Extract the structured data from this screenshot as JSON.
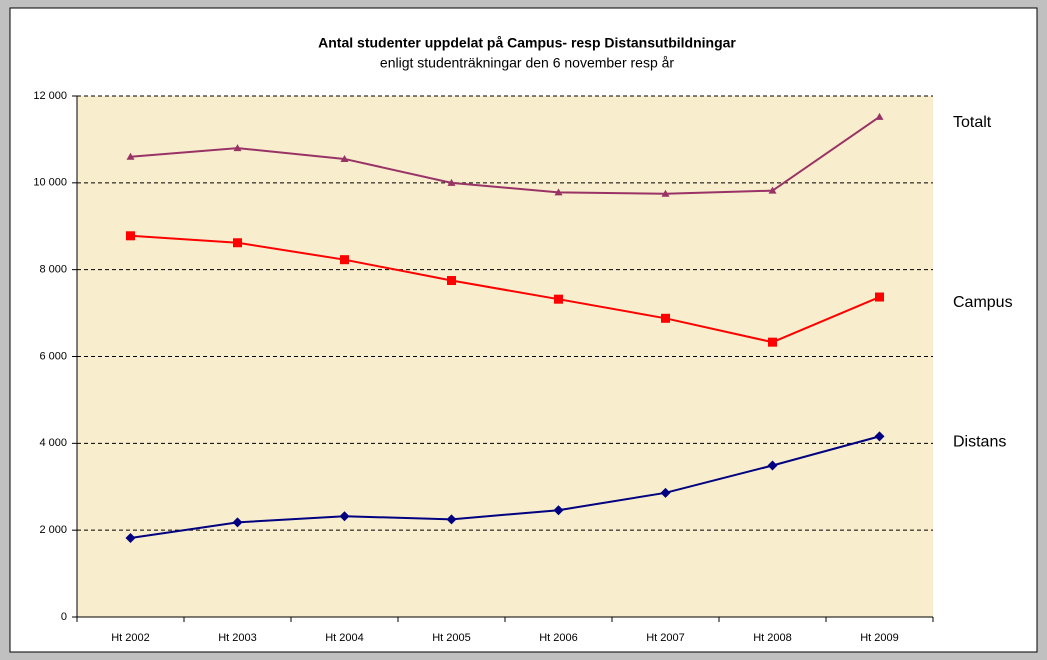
{
  "chart_data": {
    "type": "line",
    "title": "Antal studenter uppdelat på Campus- resp Distansutbildningar",
    "subtitle": "enligt studenträkningar den 6 november resp år",
    "categories": [
      "Ht 2002",
      "Ht 2003",
      "Ht 2004",
      "Ht 2005",
      "Ht 2006",
      "Ht 2007",
      "Ht 2008",
      "Ht 2009"
    ],
    "series": [
      {
        "name": "Totalt",
        "color": "#993366",
        "marker": "triangle",
        "values": [
          10600,
          10800,
          10550,
          10000,
          9780,
          9750,
          9820,
          11520
        ]
      },
      {
        "name": "Campus",
        "color": "#ff0000",
        "marker": "square",
        "values": [
          8780,
          8620,
          8230,
          7750,
          7320,
          6880,
          6330,
          7370
        ]
      },
      {
        "name": "Distans",
        "color": "#000080",
        "marker": "diamond",
        "values": [
          1820,
          2180,
          2320,
          2250,
          2460,
          2860,
          3490,
          4160
        ]
      }
    ],
    "ylim": [
      0,
      12000
    ],
    "yticks": [
      0,
      {
        "value": 2000,
        "label": "2 000"
      },
      {
        "value": 4000,
        "label": "4 000"
      },
      {
        "value": 6000,
        "label": "6 000"
      },
      {
        "value": 8000,
        "label": "8 000"
      },
      {
        "value": 10000,
        "label": "10 000"
      },
      {
        "value": 12000,
        "label": "12 000"
      }
    ],
    "grid": true
  }
}
